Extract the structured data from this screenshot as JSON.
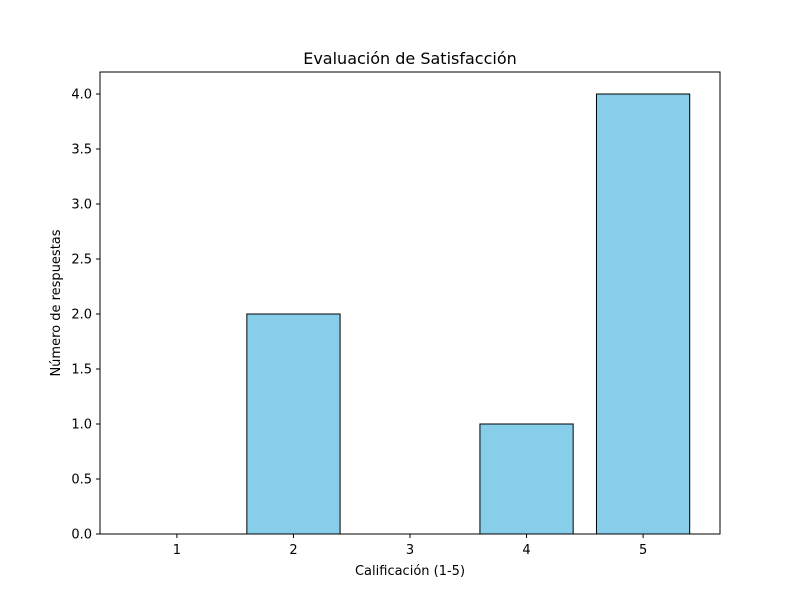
{
  "chart_data": {
    "type": "bar",
    "title": "Evaluación de Satisfacción",
    "xlabel": "Calificación (1-5)",
    "ylabel": "Número de respuestas",
    "categories": [
      "1",
      "2",
      "3",
      "4",
      "5"
    ],
    "values": [
      0,
      2,
      0,
      1,
      4
    ],
    "ylim": [
      0,
      4.2
    ],
    "yticks": [
      "0.0",
      "0.5",
      "1.0",
      "1.5",
      "2.0",
      "2.5",
      "3.0",
      "3.5",
      "4.0"
    ],
    "grid": false,
    "legend": "none",
    "bar_color": "#87CEEB",
    "edge_color": "#000000"
  }
}
